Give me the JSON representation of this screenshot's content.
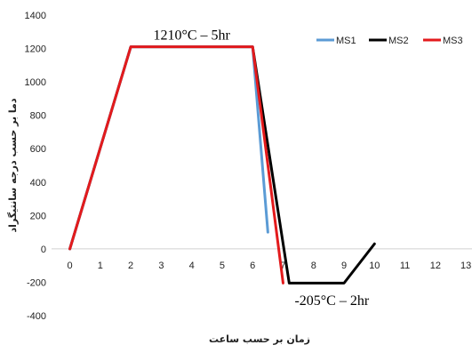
{
  "chart_data": {
    "type": "line",
    "xlabel": "زمان بر حسب ساعت",
    "ylabel": "دما بر حسب درجه سانتیگراد",
    "xlim": [
      -0.6,
      13.2
    ],
    "ylim": [
      -400,
      1400
    ],
    "x_ticks": [
      0,
      1,
      2,
      3,
      4,
      5,
      6,
      7,
      8,
      9,
      10,
      11,
      12,
      13
    ],
    "y_ticks": [
      -400,
      -200,
      0,
      200,
      400,
      600,
      800,
      1000,
      1200,
      1400
    ],
    "grid": false,
    "legend_position": "top-right",
    "series": [
      {
        "name": "MS1",
        "color": "#5b9bd5",
        "x": [
          0,
          2,
          6,
          6.5
        ],
        "y": [
          0,
          1210,
          1210,
          100
        ]
      },
      {
        "name": "MS2",
        "color": "#000000",
        "x": [
          0,
          2,
          6,
          7.2,
          9,
          10
        ],
        "y": [
          0,
          1210,
          1210,
          -205,
          -205,
          30
        ]
      },
      {
        "name": "MS3",
        "color": "#e31a1c",
        "x": [
          0,
          2,
          6,
          7
        ],
        "y": [
          0,
          1210,
          1210,
          -205
        ]
      }
    ],
    "annotations": [
      {
        "text": "1210°C – 5hr",
        "x": 4,
        "y": 1280
      },
      {
        "text": "-205°C – 2hr",
        "x": 8.6,
        "y": -310
      }
    ]
  }
}
